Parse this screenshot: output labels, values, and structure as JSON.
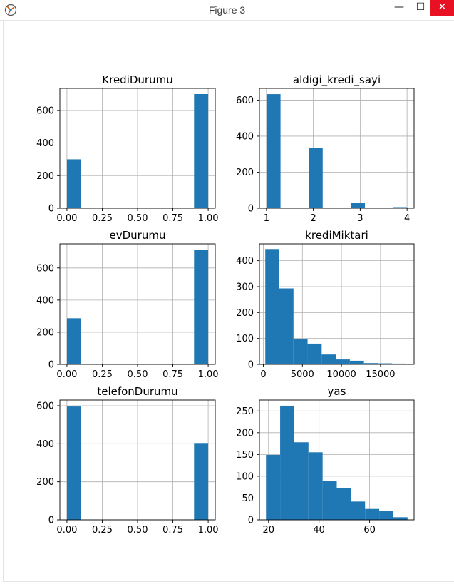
{
  "window": {
    "title": "Figure 3",
    "minimize_glyph": "—",
    "maximize_glyph": "☐",
    "close_glyph": "✕"
  },
  "colors": {
    "bar": "#1f77b4",
    "grid": "#b0b0b0",
    "axis": "#000000"
  },
  "chart_data": [
    {
      "type": "bar",
      "title": "KrediDurumu",
      "xlim": [
        -0.05,
        1.05
      ],
      "ylim": [
        0,
        735
      ],
      "xticks": [
        0.0,
        0.25,
        0.5,
        0.75,
        1.0
      ],
      "xticklabels": [
        "0.00",
        "0.25",
        "0.50",
        "0.75",
        "1.00"
      ],
      "yticks": [
        0,
        200,
        400,
        600
      ],
      "yticklabels": [
        "0",
        "200",
        "400",
        "600"
      ],
      "bins": [
        [
          0.0,
          0.1,
          300
        ],
        [
          0.9,
          1.0,
          700
        ]
      ],
      "grid": true
    },
    {
      "type": "bar",
      "title": "aldigi_kredi_sayi",
      "xlim": [
        0.85,
        4.15
      ],
      "ylim": [
        0,
        665
      ],
      "xticks": [
        1,
        2,
        3,
        4
      ],
      "xticklabels": [
        "1",
        "2",
        "3",
        "4"
      ],
      "yticks": [
        0,
        200,
        400,
        600
      ],
      "yticklabels": [
        "0",
        "200",
        "400",
        "600"
      ],
      "bins": [
        [
          1.0,
          1.3,
          633
        ],
        [
          1.9,
          2.2,
          333
        ],
        [
          2.8,
          3.1,
          28
        ],
        [
          3.7,
          4.0,
          6
        ]
      ],
      "grid": true
    },
    {
      "type": "bar",
      "title": "evDurumu",
      "xlim": [
        -0.05,
        1.05
      ],
      "ylim": [
        0,
        750
      ],
      "xticks": [
        0.0,
        0.25,
        0.5,
        0.75,
        1.0
      ],
      "xticklabels": [
        "0.00",
        "0.25",
        "0.50",
        "0.75",
        "1.00"
      ],
      "yticks": [
        0,
        200,
        400,
        600
      ],
      "yticklabels": [
        "0",
        "200",
        "400",
        "600"
      ],
      "bins": [
        [
          0.0,
          0.1,
          287
        ],
        [
          0.9,
          1.0,
          713
        ]
      ],
      "grid": true
    },
    {
      "type": "bar",
      "title": "krediMiktari",
      "xlim": [
        -500,
        19300
      ],
      "ylim": [
        0,
        465
      ],
      "xticks": [
        0,
        5000,
        10000,
        15000
      ],
      "xticklabels": [
        "0",
        "5000",
        "10000",
        "15000"
      ],
      "yticks": [
        0,
        100,
        200,
        300,
        400
      ],
      "yticklabels": [
        "0",
        "100",
        "200",
        "300",
        "400"
      ],
      "bins": [
        [
          250,
          2055,
          445
        ],
        [
          2055,
          3860,
          293
        ],
        [
          3860,
          5665,
          99
        ],
        [
          5665,
          7470,
          80
        ],
        [
          7470,
          9275,
          38
        ],
        [
          9275,
          11080,
          19
        ],
        [
          11080,
          12885,
          14
        ],
        [
          12885,
          14690,
          5
        ],
        [
          14690,
          16495,
          4
        ],
        [
          16495,
          18300,
          3
        ]
      ],
      "grid": true
    },
    {
      "type": "bar",
      "title": "telefonDurumu",
      "xlim": [
        -0.05,
        1.05
      ],
      "ylim": [
        0,
        630
      ],
      "xticks": [
        0.0,
        0.25,
        0.5,
        0.75,
        1.0
      ],
      "xticklabels": [
        "0.00",
        "0.25",
        "0.50",
        "0.75",
        "1.00"
      ],
      "yticks": [
        0,
        200,
        400,
        600
      ],
      "yticklabels": [
        "0",
        "200",
        "400",
        "600"
      ],
      "bins": [
        [
          0.0,
          0.1,
          596
        ],
        [
          0.9,
          1.0,
          404
        ]
      ],
      "grid": true
    },
    {
      "type": "bar",
      "title": "yas",
      "xlim": [
        16.4,
        77.6
      ],
      "ylim": [
        0,
        275
      ],
      "xticks": [
        20,
        40,
        60
      ],
      "xticklabels": [
        "20",
        "40",
        "60"
      ],
      "yticks": [
        0,
        50,
        100,
        150,
        200,
        250
      ],
      "yticklabels": [
        "0",
        "50",
        "100",
        "150",
        "200",
        "250"
      ],
      "bins": [
        [
          19.0,
          24.6,
          149
        ],
        [
          24.6,
          30.2,
          262
        ],
        [
          30.2,
          35.8,
          178
        ],
        [
          35.8,
          41.4,
          155
        ],
        [
          41.4,
          47.0,
          89
        ],
        [
          47.0,
          52.6,
          73
        ],
        [
          52.6,
          58.2,
          42
        ],
        [
          58.2,
          63.8,
          25
        ],
        [
          63.8,
          69.4,
          21
        ],
        [
          69.4,
          75.0,
          6
        ]
      ],
      "grid": true
    }
  ]
}
